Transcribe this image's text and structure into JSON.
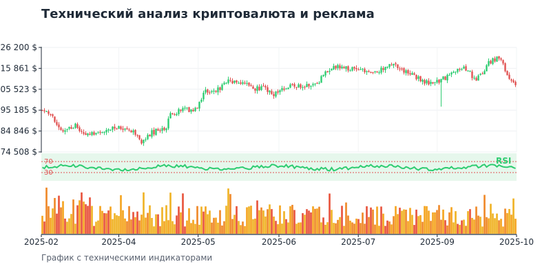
{
  "title": "Технический анализ криптовалюта и реклама",
  "caption": "График с техническими индикаторами",
  "chart_data": {
    "type": "candlestick",
    "title": "Технический анализ криптовалюта и реклама",
    "currency_suffix": " $",
    "price_ticks": [
      "74 508 $",
      "84 846 $",
      "95 185 $",
      "105 523 $",
      "115 861 $",
      "126 200 $"
    ],
    "price_tick_values": [
      74508,
      84846,
      95185,
      105523,
      115861,
      126200
    ],
    "ylim": [
      74508,
      126200
    ],
    "x_ticks": [
      "2025-02",
      "2025-04",
      "2025-05",
      "2025-06",
      "2025-07",
      "2025-09",
      "2025-10"
    ],
    "x_tick_positions": [
      0,
      0.163,
      0.33,
      0.5,
      0.667,
      0.833,
      1.0
    ],
    "price_keypoints": [
      [
        0,
        95200
      ],
      [
        0.015,
        94000
      ],
      [
        0.03,
        88000
      ],
      [
        0.05,
        85000
      ],
      [
        0.07,
        88000
      ],
      [
        0.09,
        83000
      ],
      [
        0.12,
        84000
      ],
      [
        0.14,
        85500
      ],
      [
        0.16,
        87000
      ],
      [
        0.18,
        86500
      ],
      [
        0.2,
        83000
      ],
      [
        0.21,
        79000
      ],
      [
        0.23,
        84000
      ],
      [
        0.25,
        85500
      ],
      [
        0.26,
        86000
      ],
      [
        0.27,
        93000
      ],
      [
        0.3,
        95500
      ],
      [
        0.31,
        95000
      ],
      [
        0.33,
        97000
      ],
      [
        0.34,
        104000
      ],
      [
        0.37,
        105000
      ],
      [
        0.38,
        107500
      ],
      [
        0.39,
        110000
      ],
      [
        0.41,
        108500
      ],
      [
        0.43,
        108000
      ],
      [
        0.45,
        106000
      ],
      [
        0.47,
        106500
      ],
      [
        0.49,
        103000
      ],
      [
        0.5,
        105000
      ],
      [
        0.51,
        106500
      ],
      [
        0.54,
        107500
      ],
      [
        0.58,
        108000
      ],
      [
        0.6,
        114500
      ],
      [
        0.62,
        116500
      ],
      [
        0.65,
        116000
      ],
      [
        0.67,
        115500
      ],
      [
        0.7,
        114000
      ],
      [
        0.72,
        116000
      ],
      [
        0.74,
        119000
      ],
      [
        0.76,
        115000
      ],
      [
        0.78,
        113000
      ],
      [
        0.8,
        110500
      ],
      [
        0.82,
        108000
      ],
      [
        0.84,
        110000
      ],
      [
        0.86,
        112000
      ],
      [
        0.88,
        115500
      ],
      [
        0.9,
        115500
      ],
      [
        0.91,
        110000
      ],
      [
        0.93,
        113000
      ],
      [
        0.94,
        118500
      ],
      [
        0.96,
        121000
      ],
      [
        0.97,
        119500
      ],
      [
        0.98,
        114500
      ],
      [
        0.99,
        110000
      ],
      [
        1.0,
        107500
      ]
    ],
    "rsi": {
      "label": "RSI",
      "upper": 70,
      "lower": 30,
      "upper_label": "70",
      "lower_label": "30"
    },
    "volume": {
      "unit": "",
      "values": []
    },
    "grid": true,
    "legend": "none"
  }
}
